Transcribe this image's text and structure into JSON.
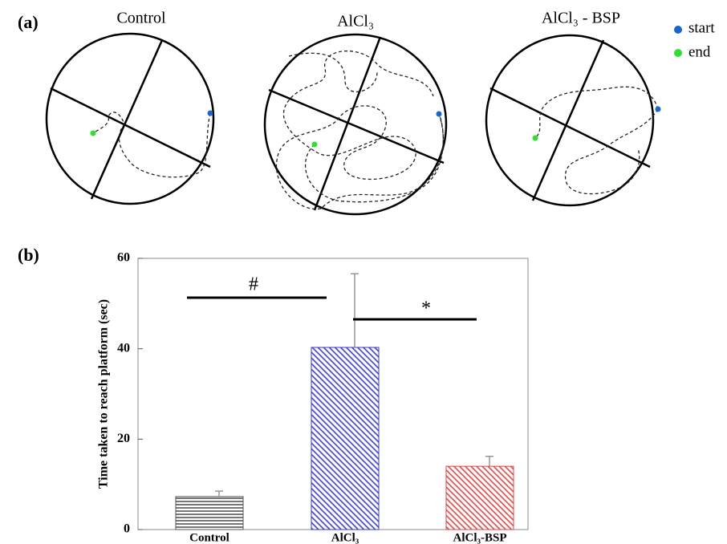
{
  "panel_a": {
    "label": "(a)",
    "groups": [
      "Control",
      "AlCl₃",
      "AlCl₃ - BSP"
    ],
    "legend": [
      "start",
      "end"
    ]
  },
  "chart_data": {
    "type": "bar",
    "panel_label": "(b)",
    "y_label": "Time taken to reach platform (sec)",
    "categories": [
      "Control",
      "AlCl₃",
      "AlCl₃-BSP"
    ],
    "values": [
      7.3,
      40.3,
      14.0
    ],
    "errors": [
      1.2,
      16.3,
      2.2
    ],
    "colors": [
      "#555555",
      "#3a3acc",
      "#dd4444"
    ],
    "ylim": [
      0,
      60
    ],
    "yticks": [
      0,
      20,
      40,
      60
    ],
    "annotations": [
      "#",
      "*"
    ]
  }
}
